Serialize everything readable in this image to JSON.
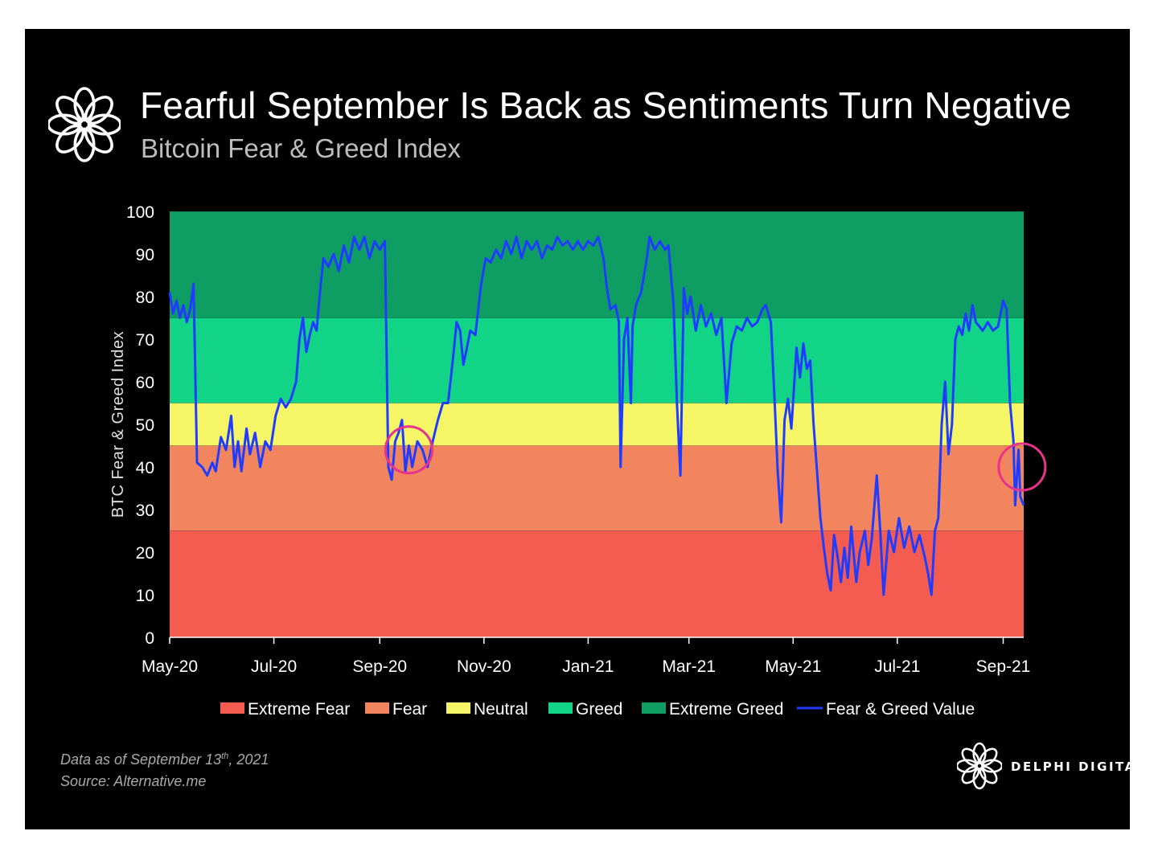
{
  "header": {
    "title": "Fearful September Is Back as Sentiments Turn Negative",
    "subtitle": "Bitcoin Fear & Greed Index",
    "logo_icon": "delphi-flower-logo-icon"
  },
  "footer": {
    "data_as_of_prefix": "Data as of September 13",
    "data_as_of_sup": "th",
    "data_as_of_suffix": ", 2021",
    "source": "Source: Alternative.me",
    "brand": "DELPHI DIGITAL",
    "brand_icon": "delphi-flower-logo-icon"
  },
  "colors": {
    "extreme_fear": "#f45b51",
    "fear": "#f2855e",
    "neutral": "#f5f565",
    "greed": "#12d486",
    "extreme_greed": "#0e9e63",
    "line": "#1f3cff",
    "highlight": "#e8338c"
  },
  "chart_data": {
    "type": "line",
    "title": "Fearful September Is Back as Sentiments Turn Negative",
    "subtitle": "Bitcoin Fear & Greed Index",
    "ylabel": "BTC Fear & Greed Index",
    "xlabel": "",
    "ylim": [
      0,
      100
    ],
    "yticks": [
      0,
      10,
      20,
      30,
      40,
      50,
      60,
      70,
      80,
      90,
      100
    ],
    "xlim": [
      "2020-05-01",
      "2021-09-13"
    ],
    "xticks": [
      {
        "date": "2020-05-01",
        "label": "May-20"
      },
      {
        "date": "2020-07-01",
        "label": "Jul-20"
      },
      {
        "date": "2020-09-01",
        "label": "Sep-20"
      },
      {
        "date": "2020-11-01",
        "label": "Nov-20"
      },
      {
        "date": "2021-01-01",
        "label": "Jan-21"
      },
      {
        "date": "2021-03-01",
        "label": "Mar-21"
      },
      {
        "date": "2021-05-01",
        "label": "May-21"
      },
      {
        "date": "2021-07-01",
        "label": "Jul-21"
      },
      {
        "date": "2021-09-01",
        "label": "Sep-21"
      }
    ],
    "bands": [
      {
        "name": "Extreme Fear",
        "from": 0,
        "to": 25,
        "color": "#f45b51"
      },
      {
        "name": "Fear",
        "from": 25,
        "to": 45,
        "color": "#f2855e"
      },
      {
        "name": "Neutral",
        "from": 45,
        "to": 55,
        "color": "#f5f565"
      },
      {
        "name": "Greed",
        "from": 55,
        "to": 75,
        "color": "#12d486"
      },
      {
        "name": "Extreme Greed",
        "from": 75,
        "to": 100,
        "color": "#0e9e63"
      }
    ],
    "legend": {
      "placement": "bottom",
      "entries": [
        "Extreme Fear",
        "Fear",
        "Neutral",
        "Greed",
        "Extreme Greed",
        "Fear & Greed Value"
      ]
    },
    "series": [
      {
        "name": "Fear & Greed Value",
        "color": "#1f3cff",
        "points": [
          [
            "2020-05-01",
            81
          ],
          [
            "2020-05-03",
            76
          ],
          [
            "2020-05-05",
            79
          ],
          [
            "2020-05-07",
            75
          ],
          [
            "2020-05-09",
            78
          ],
          [
            "2020-05-11",
            74
          ],
          [
            "2020-05-13",
            77
          ],
          [
            "2020-05-15",
            83
          ],
          [
            "2020-05-17",
            41
          ],
          [
            "2020-05-20",
            40
          ],
          [
            "2020-05-23",
            38
          ],
          [
            "2020-05-26",
            41
          ],
          [
            "2020-05-28",
            39
          ],
          [
            "2020-05-31",
            47
          ],
          [
            "2020-06-03",
            44
          ],
          [
            "2020-06-06",
            52
          ],
          [
            "2020-06-08",
            40
          ],
          [
            "2020-06-10",
            46
          ],
          [
            "2020-06-12",
            39
          ],
          [
            "2020-06-15",
            49
          ],
          [
            "2020-06-17",
            43
          ],
          [
            "2020-06-20",
            48
          ],
          [
            "2020-06-23",
            40
          ],
          [
            "2020-06-26",
            46
          ],
          [
            "2020-06-29",
            44
          ],
          [
            "2020-07-02",
            52
          ],
          [
            "2020-07-05",
            56
          ],
          [
            "2020-07-08",
            54
          ],
          [
            "2020-07-11",
            56
          ],
          [
            "2020-07-14",
            60
          ],
          [
            "2020-07-16",
            70
          ],
          [
            "2020-07-18",
            75
          ],
          [
            "2020-07-20",
            67
          ],
          [
            "2020-07-22",
            71
          ],
          [
            "2020-07-24",
            74
          ],
          [
            "2020-07-26",
            72
          ],
          [
            "2020-07-28",
            81
          ],
          [
            "2020-07-30",
            89
          ],
          [
            "2020-08-02",
            87
          ],
          [
            "2020-08-05",
            90
          ],
          [
            "2020-08-08",
            86
          ],
          [
            "2020-08-11",
            92
          ],
          [
            "2020-08-14",
            88
          ],
          [
            "2020-08-17",
            94
          ],
          [
            "2020-08-20",
            91
          ],
          [
            "2020-08-23",
            94
          ],
          [
            "2020-08-26",
            89
          ],
          [
            "2020-08-29",
            93
          ],
          [
            "2020-09-01",
            91
          ],
          [
            "2020-09-04",
            93
          ],
          [
            "2020-09-06",
            40
          ],
          [
            "2020-09-08",
            37
          ],
          [
            "2020-09-10",
            46
          ],
          [
            "2020-09-12",
            48
          ],
          [
            "2020-09-14",
            51
          ],
          [
            "2020-09-16",
            39
          ],
          [
            "2020-09-18",
            45
          ],
          [
            "2020-09-20",
            40
          ],
          [
            "2020-09-23",
            46
          ],
          [
            "2020-09-26",
            44
          ],
          [
            "2020-09-29",
            40
          ],
          [
            "2020-10-02",
            46
          ],
          [
            "2020-10-05",
            51
          ],
          [
            "2020-10-08",
            55
          ],
          [
            "2020-10-11",
            55
          ],
          [
            "2020-10-14",
            66
          ],
          [
            "2020-10-16",
            74
          ],
          [
            "2020-10-18",
            72
          ],
          [
            "2020-10-20",
            64
          ],
          [
            "2020-10-22",
            68
          ],
          [
            "2020-10-24",
            72
          ],
          [
            "2020-10-27",
            71
          ],
          [
            "2020-10-30",
            82
          ],
          [
            "2020-11-02",
            89
          ],
          [
            "2020-11-05",
            88
          ],
          [
            "2020-11-08",
            91
          ],
          [
            "2020-11-11",
            89
          ],
          [
            "2020-11-14",
            93
          ],
          [
            "2020-11-17",
            90
          ],
          [
            "2020-11-20",
            94
          ],
          [
            "2020-11-23",
            89
          ],
          [
            "2020-11-26",
            93
          ],
          [
            "2020-11-29",
            91
          ],
          [
            "2020-12-02",
            93
          ],
          [
            "2020-12-05",
            89
          ],
          [
            "2020-12-08",
            92
          ],
          [
            "2020-12-11",
            91
          ],
          [
            "2020-12-14",
            94
          ],
          [
            "2020-12-17",
            92
          ],
          [
            "2020-12-20",
            93
          ],
          [
            "2020-12-23",
            91
          ],
          [
            "2020-12-26",
            93
          ],
          [
            "2020-12-29",
            91
          ],
          [
            "2021-01-01",
            93
          ],
          [
            "2021-01-04",
            92
          ],
          [
            "2021-01-07",
            94
          ],
          [
            "2021-01-10",
            89
          ],
          [
            "2021-01-12",
            82
          ],
          [
            "2021-01-14",
            77
          ],
          [
            "2021-01-17",
            78
          ],
          [
            "2021-01-19",
            74
          ],
          [
            "2021-01-20",
            40
          ],
          [
            "2021-01-22",
            70
          ],
          [
            "2021-01-24",
            75
          ],
          [
            "2021-01-26",
            55
          ],
          [
            "2021-01-27",
            73
          ],
          [
            "2021-01-29",
            78
          ],
          [
            "2021-02-01",
            81
          ],
          [
            "2021-02-04",
            88
          ],
          [
            "2021-02-06",
            94
          ],
          [
            "2021-02-09",
            91
          ],
          [
            "2021-02-12",
            93
          ],
          [
            "2021-02-15",
            91
          ],
          [
            "2021-02-17",
            92
          ],
          [
            "2021-02-20",
            78
          ],
          [
            "2021-02-22",
            55
          ],
          [
            "2021-02-24",
            38
          ],
          [
            "2021-02-26",
            82
          ],
          [
            "2021-02-28",
            76
          ],
          [
            "2021-03-02",
            80
          ],
          [
            "2021-03-05",
            72
          ],
          [
            "2021-03-08",
            78
          ],
          [
            "2021-03-11",
            73
          ],
          [
            "2021-03-14",
            76
          ],
          [
            "2021-03-17",
            71
          ],
          [
            "2021-03-20",
            75
          ],
          [
            "2021-03-23",
            55
          ],
          [
            "2021-03-26",
            69
          ],
          [
            "2021-03-29",
            73
          ],
          [
            "2021-04-01",
            72
          ],
          [
            "2021-04-04",
            75
          ],
          [
            "2021-04-07",
            73
          ],
          [
            "2021-04-10",
            74
          ],
          [
            "2021-04-13",
            77
          ],
          [
            "2021-04-15",
            78
          ],
          [
            "2021-04-18",
            74
          ],
          [
            "2021-04-20",
            57
          ],
          [
            "2021-04-22",
            39
          ],
          [
            "2021-04-24",
            27
          ],
          [
            "2021-04-26",
            51
          ],
          [
            "2021-04-28",
            56
          ],
          [
            "2021-04-30",
            49
          ],
          [
            "2021-05-03",
            68
          ],
          [
            "2021-05-05",
            61
          ],
          [
            "2021-05-07",
            69
          ],
          [
            "2021-05-09",
            63
          ],
          [
            "2021-05-11",
            65
          ],
          [
            "2021-05-13",
            50
          ],
          [
            "2021-05-15",
            39
          ],
          [
            "2021-05-17",
            28
          ],
          [
            "2021-05-19",
            21
          ],
          [
            "2021-05-21",
            15
          ],
          [
            "2021-05-23",
            11
          ],
          [
            "2021-05-25",
            24
          ],
          [
            "2021-05-27",
            19
          ],
          [
            "2021-05-29",
            13
          ],
          [
            "2021-05-31",
            21
          ],
          [
            "2021-06-02",
            14
          ],
          [
            "2021-06-04",
            26
          ],
          [
            "2021-06-07",
            13
          ],
          [
            "2021-06-09",
            20
          ],
          [
            "2021-06-12",
            25
          ],
          [
            "2021-06-14",
            17
          ],
          [
            "2021-06-16",
            23
          ],
          [
            "2021-06-19",
            38
          ],
          [
            "2021-06-21",
            25
          ],
          [
            "2021-06-23",
            10
          ],
          [
            "2021-06-26",
            25
          ],
          [
            "2021-06-29",
            20
          ],
          [
            "2021-07-02",
            28
          ],
          [
            "2021-07-05",
            21
          ],
          [
            "2021-07-08",
            26
          ],
          [
            "2021-07-11",
            20
          ],
          [
            "2021-07-14",
            24
          ],
          [
            "2021-07-17",
            19
          ],
          [
            "2021-07-19",
            15
          ],
          [
            "2021-07-21",
            10
          ],
          [
            "2021-07-23",
            25
          ],
          [
            "2021-07-25",
            28
          ],
          [
            "2021-07-27",
            50
          ],
          [
            "2021-07-29",
            60
          ],
          [
            "2021-07-31",
            43
          ],
          [
            "2021-08-02",
            50
          ],
          [
            "2021-08-04",
            70
          ],
          [
            "2021-08-06",
            73
          ],
          [
            "2021-08-08",
            71
          ],
          [
            "2021-08-10",
            76
          ],
          [
            "2021-08-12",
            72
          ],
          [
            "2021-08-14",
            78
          ],
          [
            "2021-08-16",
            74
          ],
          [
            "2021-08-18",
            73
          ],
          [
            "2021-08-20",
            72
          ],
          [
            "2021-08-23",
            74
          ],
          [
            "2021-08-26",
            72
          ],
          [
            "2021-08-29",
            73
          ],
          [
            "2021-09-01",
            79
          ],
          [
            "2021-09-03",
            77
          ],
          [
            "2021-09-05",
            55
          ],
          [
            "2021-09-07",
            46
          ],
          [
            "2021-09-08",
            31
          ],
          [
            "2021-09-10",
            44
          ],
          [
            "2021-09-11",
            33
          ],
          [
            "2021-09-13",
            31
          ]
        ]
      }
    ],
    "annotations": [
      {
        "shape": "circle",
        "center_date": "2020-09-18",
        "center_value": 44,
        "color": "#e8338c"
      },
      {
        "shape": "circle",
        "center_date": "2021-09-12",
        "center_value": 40,
        "color": "#e8338c"
      }
    ]
  }
}
